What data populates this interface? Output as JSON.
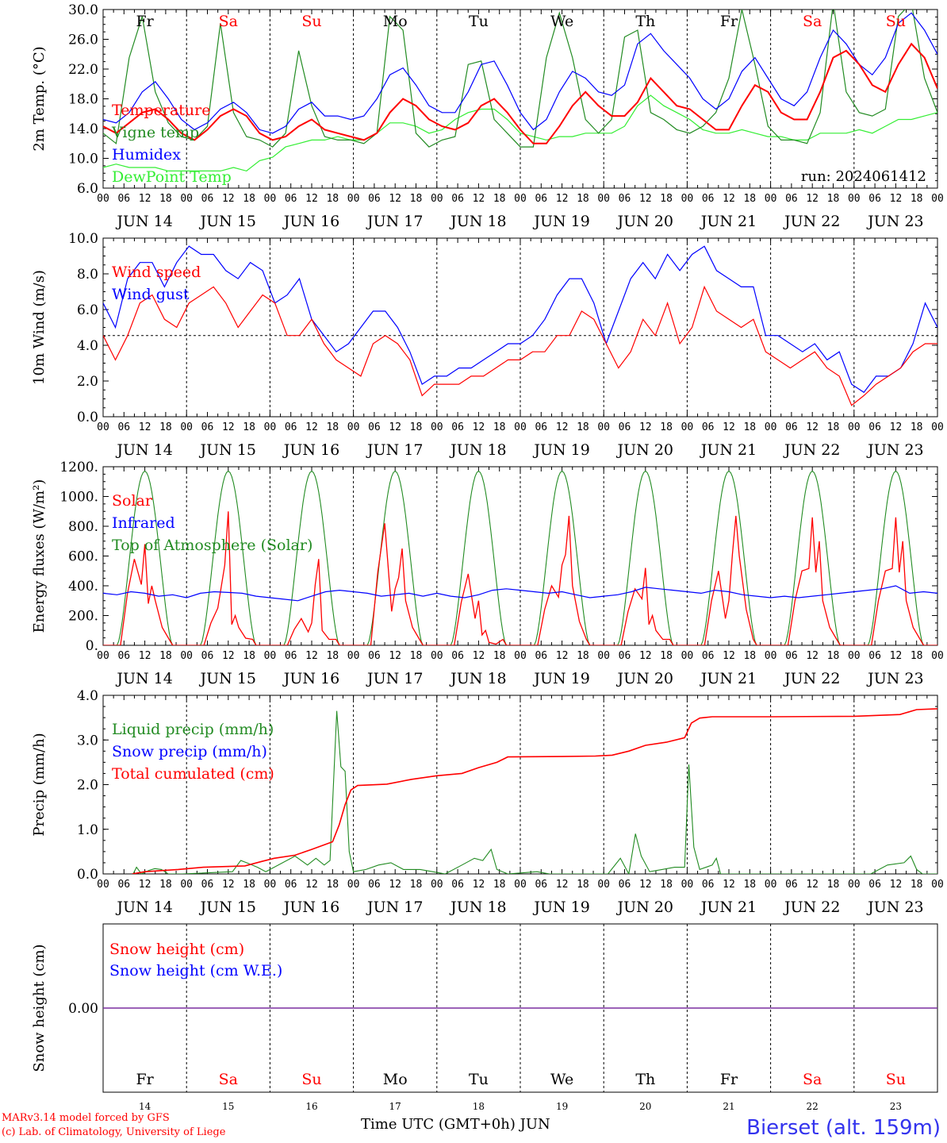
{
  "days": [
    "Fr",
    "Sa",
    "Su",
    "Mo",
    "Tu",
    "We",
    "Th",
    "Fr",
    "Sa",
    "Su"
  ],
  "weekend_days": [
    1,
    2,
    8,
    9
  ],
  "day_numbers": [
    "14",
    "15",
    "16",
    "17",
    "18",
    "19",
    "20",
    "21",
    "22",
    "23"
  ],
  "date_labels": [
    "JUN 14",
    "JUN 15",
    "JUN 16",
    "JUN 17",
    "JUN 18",
    "JUN 19",
    "JUN 20",
    "JUN 21",
    "JUN 22",
    "JUN 23"
  ],
  "hour_labels": [
    "00",
    "06",
    "12",
    "18"
  ],
  "run_label": "run: 2024061412",
  "x_title": "Time UTC (GMT+0h)",
  "x_month": "JUN",
  "footer": {
    "line1": "MARv3.14 model forced by GFS",
    "line2": "(c) Lab. of Climatology, University of Liege"
  },
  "station": "Bierset (alt. 159m)",
  "colors": {
    "red": "#ff0000",
    "green_dark": "#228b22",
    "blue": "#0000ff",
    "green_light": "#33ee33",
    "purple": "#7a2fa0"
  },
  "chart_data": [
    {
      "type": "line",
      "ylabel": "2m Temp. (°C)",
      "ylim": [
        6,
        32
      ],
      "yticks": [
        "6.0",
        "10.0",
        "14.0",
        "18.0",
        "22.0",
        "26.0",
        "30.0"
      ],
      "series": [
        {
          "name": "Temperature",
          "color": "#ff0000",
          "values": [
            15.0,
            14.0,
            15.5,
            17.0,
            17.5,
            16.0,
            14.0,
            13.0,
            14.5,
            16.5,
            17.5,
            16.5,
            14.0,
            13.0,
            13.5,
            15.0,
            16.0,
            14.5,
            14.0,
            13.5,
            13.0,
            14.0,
            17.0,
            19.0,
            18.0,
            16.0,
            15.0,
            14.5,
            15.5,
            18.0,
            19.0,
            17.0,
            14.5,
            12.5,
            12.5,
            15.0,
            18.0,
            20.0,
            18.0,
            16.5,
            16.5,
            18.5,
            22.0,
            20.0,
            18.0,
            17.5,
            16.0,
            14.5,
            14.5,
            18.0,
            21.0,
            20.0,
            17.0,
            16.0,
            16.0,
            20.0,
            25.0,
            26.0,
            24.0,
            21.0,
            20.0,
            24.0,
            27.0,
            25.0,
            20.5
          ]
        },
        {
          "name": "Vigne temp",
          "color": "#228b22",
          "values": [
            14.0,
            12.5,
            25.0,
            31.0,
            20.0,
            15.5,
            13.5,
            13.0,
            15.0,
            30.0,
            17.0,
            13.5,
            13.0,
            12.0,
            14.0,
            26.0,
            18.0,
            13.5,
            13.0,
            13.0,
            12.5,
            14.0,
            31.0,
            29.0,
            14.0,
            12.0,
            13.0,
            13.5,
            24.0,
            24.5,
            16.0,
            14.0,
            12.0,
            12.0,
            25.0,
            31.5,
            25.0,
            16.0,
            14.0,
            16.0,
            28.0,
            29.0,
            17.0,
            16.0,
            14.5,
            14.0,
            15.0,
            17.0,
            22.0,
            32.0,
            24.0,
            15.0,
            13.0,
            13.0,
            12.5,
            17.0,
            33.0,
            20.0,
            17.0,
            16.5,
            17.5,
            31.0,
            33.0,
            22.0,
            17.0
          ]
        },
        {
          "name": "Humidex",
          "color": "#0000ff",
          "values": [
            16.0,
            15.5,
            17.0,
            20.0,
            21.5,
            19.0,
            16.0,
            14.5,
            15.5,
            17.5,
            18.5,
            17.0,
            14.5,
            14.0,
            15.0,
            17.5,
            18.5,
            16.5,
            16.5,
            16.0,
            16.5,
            19.0,
            22.5,
            23.5,
            21.0,
            18.0,
            17.0,
            17.0,
            20.0,
            24.0,
            24.5,
            21.0,
            17.0,
            14.5,
            16.0,
            20.0,
            23.0,
            22.0,
            20.0,
            19.5,
            21.0,
            27.0,
            28.5,
            26.0,
            24.0,
            22.0,
            19.0,
            17.5,
            19.0,
            23.0,
            25.0,
            22.0,
            19.0,
            18.0,
            20.0,
            25.0,
            29.0,
            27.0,
            24.0,
            22.5,
            25.0,
            30.0,
            31.5,
            29.0,
            25.5
          ]
        },
        {
          "name": "DewPoint Temp",
          "color": "#33ee33",
          "values": [
            9.0,
            9.5,
            9.0,
            9.0,
            9.0,
            8.5,
            8.5,
            8.5,
            8.5,
            8.5,
            9.0,
            8.5,
            10.0,
            10.5,
            12.0,
            12.5,
            13.0,
            13.0,
            13.5,
            13.0,
            13.0,
            14.0,
            15.5,
            15.5,
            15.0,
            14.0,
            14.5,
            16.0,
            17.0,
            17.5,
            17.5,
            16.0,
            14.0,
            13.5,
            13.0,
            13.5,
            13.5,
            14.0,
            14.0,
            14.0,
            15.0,
            18.0,
            19.5,
            18.0,
            17.0,
            16.0,
            14.5,
            14.0,
            14.0,
            14.5,
            14.0,
            13.5,
            13.5,
            13.0,
            13.0,
            14.0,
            14.0,
            14.0,
            14.5,
            14.0,
            15.0,
            16.0,
            16.0,
            16.5,
            17.0
          ]
        }
      ]
    },
    {
      "type": "line",
      "ylabel": "10m Wind (m/s)",
      "ylim": [
        0,
        11
      ],
      "yticks": [
        "0.0",
        "2.0",
        "4.0",
        "6.0",
        "8.0",
        "10.0"
      ],
      "refline": 5,
      "series": [
        {
          "name": "Wind speed",
          "color": "#ff0000",
          "values": [
            5.0,
            3.5,
            5.0,
            7.0,
            7.5,
            6.0,
            5.5,
            7.0,
            7.5,
            8.0,
            7.0,
            5.5,
            6.5,
            7.5,
            7.0,
            5.0,
            5.0,
            6.0,
            4.5,
            3.5,
            3.0,
            2.5,
            4.5,
            5.0,
            4.5,
            3.5,
            1.3,
            2.0,
            2.0,
            2.0,
            2.5,
            2.5,
            3.0,
            3.5,
            3.5,
            4.0,
            4.0,
            5.0,
            5.0,
            6.5,
            6.0,
            4.5,
            3.0,
            4.0,
            6.0,
            5.0,
            7.0,
            4.5,
            5.5,
            8.0,
            6.5,
            6.0,
            5.5,
            6.0,
            4.0,
            3.5,
            3.0,
            3.5,
            4.0,
            3.0,
            2.5,
            0.7,
            1.3,
            2.0,
            2.5,
            3.0,
            4.0,
            4.5,
            4.5
          ]
        },
        {
          "name": "Wind gust",
          "color": "#0000ff",
          "values": [
            7.0,
            5.5,
            8.5,
            9.5,
            9.5,
            8.0,
            9.5,
            10.5,
            10.0,
            10.0,
            9.0,
            8.5,
            9.5,
            9.0,
            7.0,
            7.5,
            8.5,
            6.0,
            5.0,
            4.0,
            4.5,
            5.5,
            6.5,
            6.5,
            5.5,
            4.0,
            2.0,
            2.5,
            2.5,
            3.0,
            3.0,
            3.5,
            4.0,
            4.5,
            4.5,
            5.0,
            6.0,
            7.5,
            8.5,
            8.5,
            7.0,
            4.5,
            6.5,
            8.5,
            9.5,
            8.5,
            10.0,
            9.0,
            10.0,
            10.5,
            9.0,
            8.5,
            8.0,
            8.0,
            5.0,
            5.0,
            4.5,
            4.0,
            4.5,
            3.5,
            4.0,
            2.0,
            1.5,
            2.5,
            2.5,
            3.0,
            4.5,
            7.0,
            5.5
          ]
        }
      ]
    },
    {
      "type": "line",
      "ylabel": "Energy fluxes (W/m²)",
      "ylim": [
        0,
        1200
      ],
      "yticks": [
        "0.",
        "200.",
        "400.",
        "600.",
        "800.",
        "1000.",
        "1200."
      ],
      "series": [
        {
          "name": "Solar",
          "color": "#ff0000",
          "days_peaks": [
            [
              580,
              680,
              400,
              300
            ],
            [
              250,
              900,
              200,
              120
            ],
            [
              180,
              150,
              580,
              100
            ],
            [
              820,
              380,
              650,
              300
            ],
            [
              480,
              300,
              100,
              20
            ],
            [
              400,
              540,
              870,
              400
            ],
            [
              380,
              520,
              200,
              100
            ],
            [
              500,
              300,
              870,
              600
            ],
            [
              500,
              860,
              700,
              300
            ],
            [
              500,
              860,
              700,
              300
            ]
          ]
        },
        {
          "name": "Infrared",
          "color": "#0000ff",
          "values": [
            350,
            340,
            360,
            350,
            330,
            340,
            320,
            350,
            360,
            355,
            350,
            330,
            320,
            310,
            300,
            330,
            360,
            370,
            360,
            350,
            330,
            340,
            350,
            330,
            350,
            330,
            320,
            340,
            370,
            380,
            370,
            360,
            350,
            360,
            340,
            320,
            330,
            340,
            360,
            390,
            380,
            370,
            360,
            350,
            370,
            360,
            340,
            330,
            320,
            330,
            320,
            330,
            340,
            350,
            360,
            370,
            380,
            400,
            350,
            360,
            350
          ]
        },
        {
          "name": "Top of Atmosphere (Solar)",
          "color": "#228b22",
          "peak": 1170
        }
      ]
    },
    {
      "type": "line",
      "ylabel": "Precip (mm/h)",
      "ylim": [
        0,
        4
      ],
      "yticks": [
        "0.0",
        "1.0",
        "2.0",
        "3.0",
        "4.0"
      ],
      "series": [
        {
          "name": "Liquid precip (mm/h)",
          "color": "#228b22",
          "points": [
            [
              0.36,
              0.0
            ],
            [
              0.4,
              0.15
            ],
            [
              0.46,
              0.0
            ],
            [
              0.55,
              0.08
            ],
            [
              0.62,
              0.12
            ],
            [
              0.7,
              0.1
            ],
            [
              0.78,
              0.0
            ],
            [
              0.95,
              0.0
            ],
            [
              1.55,
              0.05
            ],
            [
              1.65,
              0.3
            ],
            [
              1.72,
              0.25
            ],
            [
              1.85,
              0.15
            ],
            [
              1.95,
              0.05
            ],
            [
              2.3,
              0.4
            ],
            [
              2.45,
              0.2
            ],
            [
              2.55,
              0.35
            ],
            [
              2.65,
              0.2
            ],
            [
              2.72,
              0.3
            ],
            [
              2.8,
              3.65
            ],
            [
              2.85,
              2.4
            ],
            [
              2.9,
              2.3
            ],
            [
              2.95,
              0.5
            ],
            [
              3.0,
              0.05
            ],
            [
              3.15,
              0.1
            ],
            [
              3.3,
              0.2
            ],
            [
              3.45,
              0.25
            ],
            [
              3.6,
              0.1
            ],
            [
              3.8,
              0.1
            ],
            [
              3.95,
              0.05
            ],
            [
              4.1,
              0.0
            ],
            [
              4.3,
              0.2
            ],
            [
              4.45,
              0.35
            ],
            [
              4.55,
              0.3
            ],
            [
              4.65,
              0.55
            ],
            [
              4.72,
              0.1
            ],
            [
              4.85,
              0.0
            ],
            [
              5.2,
              0.05
            ],
            [
              5.35,
              0.0
            ],
            [
              6.05,
              0.0
            ],
            [
              6.2,
              0.35
            ],
            [
              6.3,
              0.0
            ],
            [
              6.38,
              0.9
            ],
            [
              6.45,
              0.4
            ],
            [
              6.55,
              0.05
            ],
            [
              6.7,
              0.1
            ],
            [
              6.85,
              0.15
            ],
            [
              6.97,
              0.15
            ],
            [
              7.02,
              2.45
            ],
            [
              7.08,
              0.6
            ],
            [
              7.15,
              0.1
            ],
            [
              7.3,
              0.2
            ],
            [
              7.35,
              0.35
            ],
            [
              7.4,
              0.0
            ],
            [
              9.2,
              0.0
            ],
            [
              9.4,
              0.2
            ],
            [
              9.6,
              0.25
            ],
            [
              9.68,
              0.4
            ],
            [
              9.75,
              0.1
            ],
            [
              9.82,
              0.0
            ],
            [
              10.0,
              0.0
            ]
          ]
        },
        {
          "name": "Snow precip (mm/h)",
          "color": "#0000ff",
          "values": []
        },
        {
          "name": "Total cumulated (cm)",
          "color": "#ff0000",
          "points": [
            [
              0.35,
              0.0
            ],
            [
              0.5,
              0.05
            ],
            [
              0.9,
              0.1
            ],
            [
              1.2,
              0.15
            ],
            [
              1.7,
              0.18
            ],
            [
              1.9,
              0.28
            ],
            [
              2.05,
              0.35
            ],
            [
              2.3,
              0.42
            ],
            [
              2.5,
              0.55
            ],
            [
              2.75,
              0.72
            ],
            [
              2.83,
              1.1
            ],
            [
              2.9,
              1.55
            ],
            [
              2.97,
              1.88
            ],
            [
              3.05,
              1.98
            ],
            [
              3.4,
              2.01
            ],
            [
              3.7,
              2.12
            ],
            [
              4.0,
              2.2
            ],
            [
              4.3,
              2.25
            ],
            [
              4.5,
              2.38
            ],
            [
              4.72,
              2.5
            ],
            [
              4.85,
              2.62
            ],
            [
              5.5,
              2.63
            ],
            [
              5.9,
              2.64
            ],
            [
              6.1,
              2.66
            ],
            [
              6.3,
              2.75
            ],
            [
              6.5,
              2.88
            ],
            [
              6.75,
              2.95
            ],
            [
              6.97,
              3.05
            ],
            [
              7.05,
              3.38
            ],
            [
              7.15,
              3.49
            ],
            [
              7.3,
              3.52
            ],
            [
              8.0,
              3.52
            ],
            [
              9.0,
              3.53
            ],
            [
              9.55,
              3.57
            ],
            [
              9.75,
              3.68
            ],
            [
              10.0,
              3.7
            ]
          ]
        }
      ]
    },
    {
      "type": "line",
      "ylabel": "Snow height (cm)",
      "ylim": [
        -1,
        1
      ],
      "yticks": [
        "0.00"
      ],
      "series": [
        {
          "name": "Snow height (cm)",
          "color": "#ff0000",
          "values": [
            0,
            0
          ]
        },
        {
          "name": "Snow height (cm W.E.)",
          "color": "#0000ff",
          "values": [
            0,
            0
          ]
        }
      ]
    }
  ]
}
